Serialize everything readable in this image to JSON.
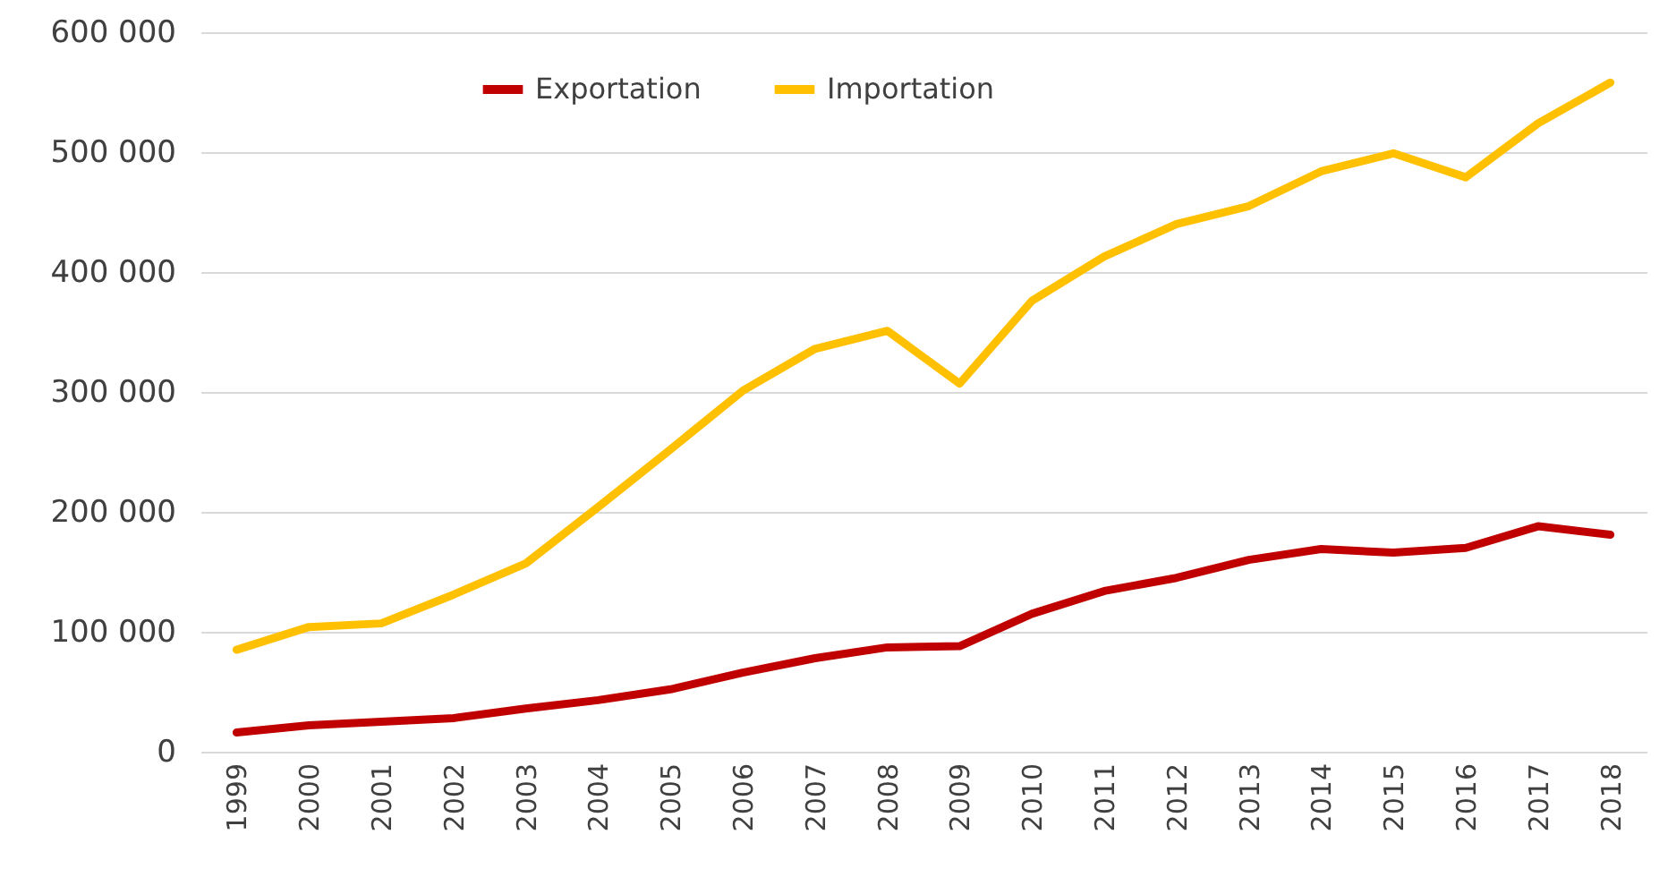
{
  "chart_data": {
    "type": "line",
    "categories": [
      "1999",
      "2000",
      "2001",
      "2002",
      "2003",
      "2004",
      "2005",
      "2006",
      "2007",
      "2008",
      "2009",
      "2010",
      "2011",
      "2012",
      "2013",
      "2014",
      "2015",
      "2016",
      "2017",
      "2018"
    ],
    "series": [
      {
        "name": "Exportation",
        "color": "#c00000",
        "values": [
          16000,
          22000,
          25000,
          28000,
          36000,
          43000,
          52000,
          66000,
          78000,
          87000,
          88000,
          115000,
          134000,
          145000,
          160000,
          169000,
          166000,
          170000,
          188000,
          181000
        ]
      },
      {
        "name": "Importation",
        "color": "#ffc000",
        "values": [
          85000,
          104000,
          107000,
          131000,
          157000,
          204000,
          252000,
          301000,
          336000,
          351000,
          307000,
          376000,
          413000,
          440000,
          455000,
          484000,
          499000,
          479000,
          524000,
          558000
        ]
      }
    ],
    "ylim": [
      0,
      600000
    ],
    "yticks": [
      0,
      {
        "value": 100000,
        "label": "100 000"
      },
      {
        "value": 200000,
        "label": "200 000"
      },
      {
        "value": 300000,
        "label": "300 000"
      },
      {
        "value": 400000,
        "label": "400 000"
      },
      {
        "value": 500000,
        "label": "500 000"
      },
      {
        "value": 600000,
        "label": "600 000"
      }
    ],
    "grid": "y",
    "legend": "top",
    "marker": "none",
    "line_style": "solid"
  }
}
